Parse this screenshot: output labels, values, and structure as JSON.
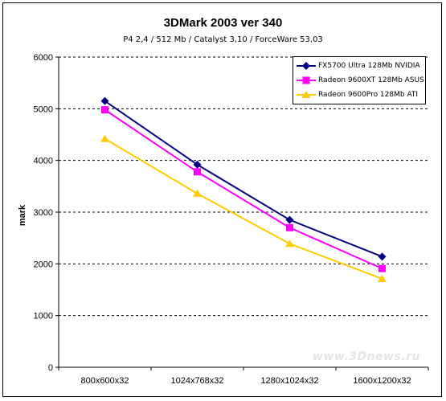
{
  "chart_data": {
    "type": "line",
    "title": "3DMark 2003 ver 340",
    "subtitle": "P4 2,4 / 512 Mb / Catalyst 3,10 / ForceWare 53,03",
    "xlabel": "",
    "ylabel": "mark",
    "categories": [
      "800x600x32",
      "1024x768x32",
      "1280x1024x32",
      "1600x1200x32"
    ],
    "ylim": [
      0,
      6000
    ],
    "yticks": [
      "0",
      "1000",
      "2000",
      "3000",
      "4000",
      "5000",
      "6000"
    ],
    "grid": "horizontal-dashed",
    "legend_position": "top-right",
    "series": [
      {
        "name": "FX5700 Ultra 128Mb NVIDIA",
        "color": "#000080",
        "marker": "diamond",
        "values": [
          5150,
          3920,
          2850,
          2140
        ]
      },
      {
        "name": "Radeon 9600XT 128Mb ASUS",
        "color": "#ff00ff",
        "marker": "square",
        "values": [
          4980,
          3780,
          2700,
          1910
        ]
      },
      {
        "name": "Radeon 9600Pro 128Mb ATI",
        "color": "#ffcc00",
        "marker": "triangle",
        "values": [
          4420,
          3360,
          2390,
          1710
        ]
      }
    ]
  },
  "watermark": "www.3Dnews.ru"
}
